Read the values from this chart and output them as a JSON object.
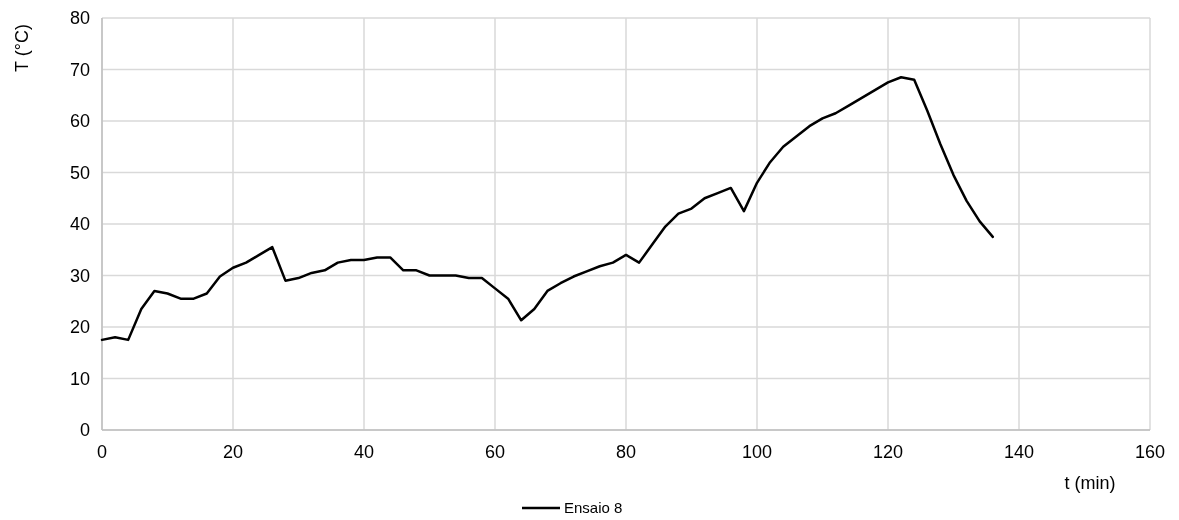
{
  "chart_data": {
    "type": "line",
    "xlabel": "t (min)",
    "ylabel": "T (°C)",
    "x": [
      0,
      2,
      4,
      6,
      8,
      10,
      12,
      14,
      16,
      18,
      20,
      22,
      24,
      26,
      28,
      30,
      32,
      34,
      36,
      38,
      40,
      42,
      44,
      46,
      48,
      50,
      52,
      54,
      56,
      58,
      60,
      62,
      64,
      66,
      68,
      70,
      72,
      74,
      76,
      78,
      80,
      82,
      84,
      86,
      88,
      90,
      92,
      94,
      96,
      98,
      100,
      102,
      104,
      106,
      108,
      110,
      112,
      114,
      116,
      118,
      120,
      122,
      124,
      126,
      128,
      130,
      132,
      134,
      136
    ],
    "series": [
      {
        "name": "Ensaio 8",
        "color": "#000000",
        "values": [
          17.5,
          18,
          17.5,
          23.5,
          27,
          26.5,
          25.5,
          25.5,
          26.5,
          29.8,
          31.5,
          32.5,
          34,
          35.5,
          29,
          29.5,
          30.5,
          31,
          32.5,
          33,
          33,
          33.5,
          33.5,
          31,
          31,
          30,
          30,
          30,
          29.5,
          29.5,
          27.5,
          25.5,
          21.3,
          23.5,
          27,
          28.5,
          29.8,
          30.8,
          31.8,
          32.5,
          34,
          32.5,
          36,
          39.5,
          42,
          43,
          45,
          46,
          47,
          42.5,
          48,
          52,
          55,
          57,
          59,
          60.5,
          61.5,
          63,
          64.5,
          66,
          67.5,
          68.5,
          68,
          62,
          55.5,
          49.5,
          44.5,
          40.5,
          37.5
        ]
      }
    ],
    "xlim": [
      0,
      160
    ],
    "xticks": [
      0,
      20,
      40,
      60,
      80,
      100,
      120,
      140,
      160
    ],
    "ylim": [
      0,
      80
    ],
    "yticks": [
      0,
      10,
      20,
      30,
      40,
      50,
      60,
      70,
      80
    ],
    "grid": true,
    "legend": "bottom",
    "marker": "none",
    "line_style": "solid"
  }
}
